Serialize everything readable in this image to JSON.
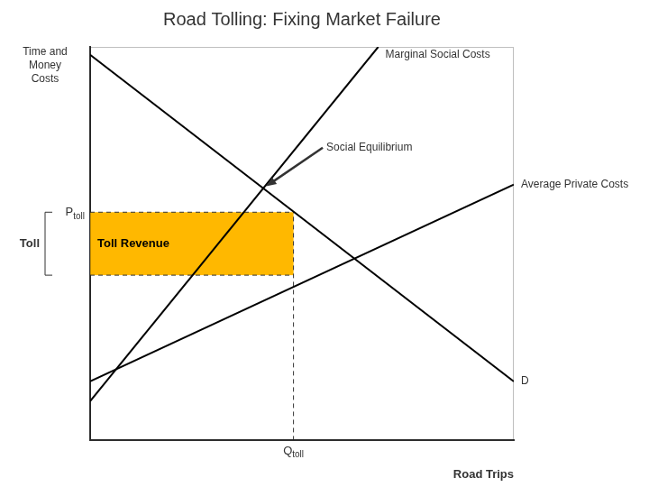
{
  "chart_data": {
    "type": "line",
    "title": "Road Tolling: Fixing Market Failure",
    "x_label": "Road Trips",
    "y_label": "Time and\nMoney\nCosts",
    "xlim": [
      0,
      10
    ],
    "ylim": [
      0,
      10
    ],
    "tick_labels": false,
    "grid": false,
    "series": [
      {
        "name": "D",
        "color": "#000000",
        "x": [
          0.0,
          10.0
        ],
        "values": [
          9.8,
          1.5
        ]
      },
      {
        "name": "Marginal Social Costs",
        "color": "#000000",
        "x": [
          0.0,
          6.8
        ],
        "values": [
          1.0,
          10.0
        ]
      },
      {
        "name": "Average Private Costs",
        "color": "#000000",
        "x": [
          0.0,
          10.0
        ],
        "values": [
          1.5,
          6.5
        ]
      }
    ],
    "toll_revenue": {
      "label": "Toll Revenue",
      "color": "#FFB800",
      "q_toll": 4.8,
      "p_toll": 5.8,
      "p_base": 4.2,
      "p_label": "P",
      "p_label_sub": "toll",
      "q_label": "Q",
      "q_label_sub": "toll",
      "toll_label": "Toll"
    },
    "annotations": [
      {
        "text": "Social Equilibrium",
        "x": 4.0863,
        "y": 6.4084
      }
    ]
  }
}
